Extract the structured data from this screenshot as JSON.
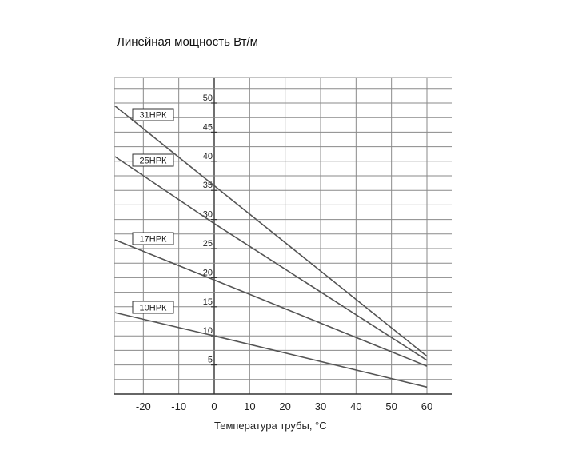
{
  "chart_data": {
    "type": "line",
    "title": "Линейная мощность  Вт/м",
    "xlabel": "Температура трубы, °С",
    "ylabel": "",
    "xlim": [
      -30,
      67
    ],
    "ylim": [
      0,
      54
    ],
    "x_ticks": [
      -20,
      -10,
      0,
      10,
      20,
      30,
      40,
      50,
      60
    ],
    "y_ticks": [
      5,
      10,
      15,
      20,
      25,
      30,
      35,
      40,
      45,
      50
    ],
    "grid": true,
    "series": [
      {
        "name": "31НРК",
        "x": [
          -28,
          0,
          60
        ],
        "y": [
          49.5,
          35.8,
          6.5
        ]
      },
      {
        "name": "25НРК",
        "x": [
          -28,
          0,
          60
        ],
        "y": [
          40.8,
          29.3,
          5.8
        ]
      },
      {
        "name": "17НРК",
        "x": [
          -28,
          0,
          60
        ],
        "y": [
          26.5,
          19.6,
          4.8
        ]
      },
      {
        "name": "10НРК",
        "x": [
          -28,
          0,
          60
        ],
        "y": [
          14.0,
          10.0,
          1.2
        ]
      }
    ]
  },
  "colors": {
    "line": "#555555",
    "grid": "#8a8a8a",
    "axis": "#333333"
  }
}
